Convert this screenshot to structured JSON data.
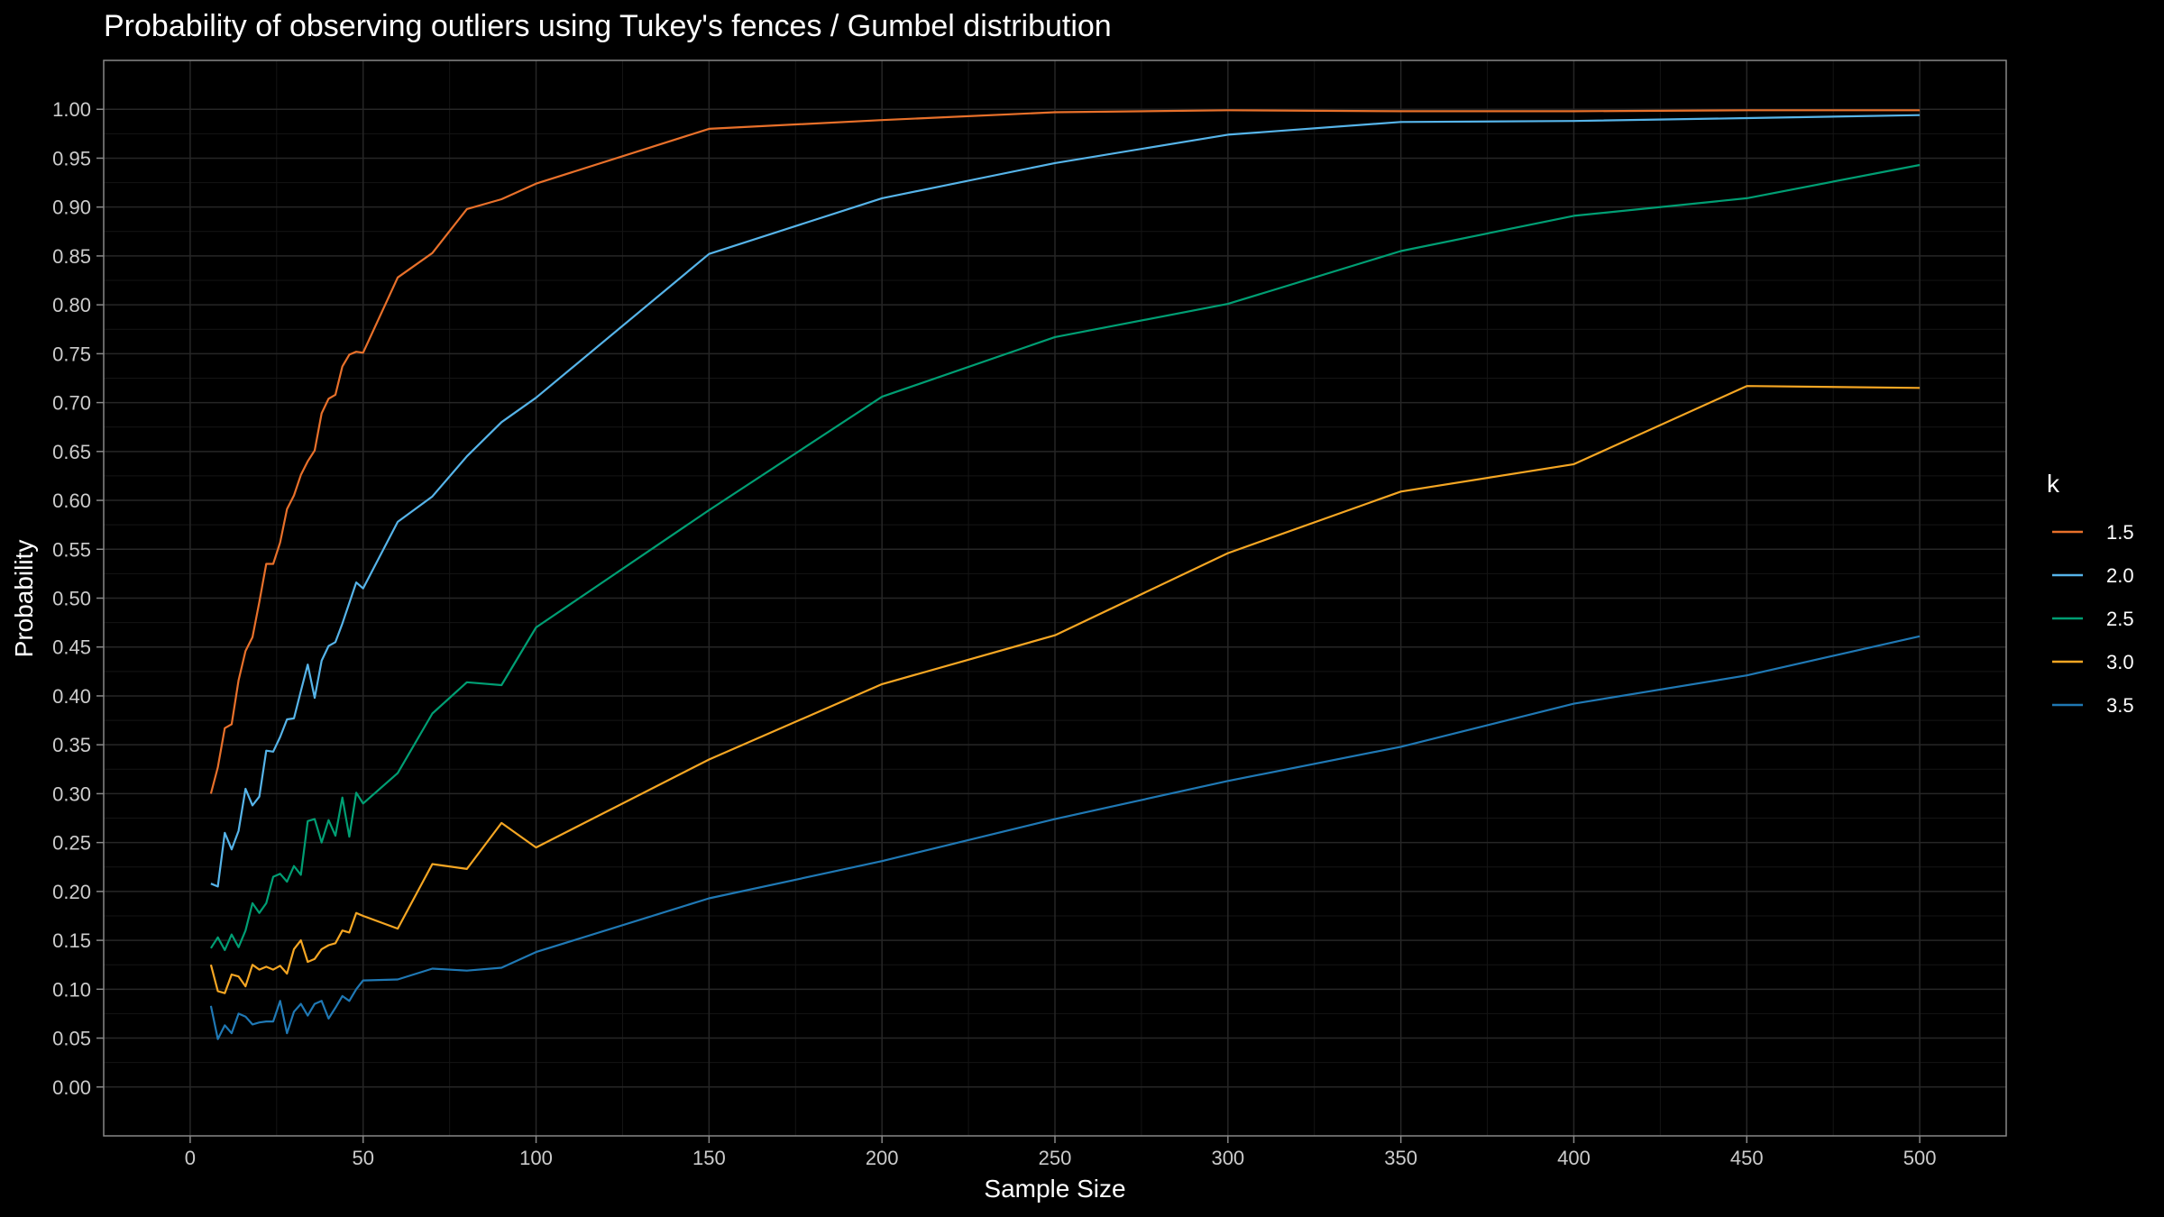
{
  "chart_data": {
    "type": "line",
    "title": "Probability of observing outliers using Tukey's fences / Gumbel distribution",
    "xlabel": "Sample Size",
    "ylabel": "Probability",
    "xlim": [
      -25,
      525
    ],
    "ylim": [
      -0.05,
      1.05
    ],
    "x_ticks": [
      0,
      50,
      100,
      150,
      200,
      250,
      300,
      350,
      400,
      450,
      500
    ],
    "y_ticks": [
      0.0,
      0.05,
      0.1,
      0.15,
      0.2,
      0.25,
      0.3,
      0.35,
      0.4,
      0.45,
      0.5,
      0.55,
      0.6,
      0.65,
      0.7,
      0.75,
      0.8,
      0.85,
      0.9,
      0.95,
      1.0
    ],
    "x_tick_labels": [
      "0",
      "50",
      "100",
      "150",
      "200",
      "250",
      "300",
      "350",
      "400",
      "450",
      "500"
    ],
    "y_tick_labels": [
      "0.00",
      "0.05",
      "0.10",
      "0.15",
      "0.20",
      "0.25",
      "0.30",
      "0.35",
      "0.40",
      "0.45",
      "0.50",
      "0.55",
      "0.60",
      "0.65",
      "0.70",
      "0.75",
      "0.80",
      "0.85",
      "0.90",
      "0.95",
      "1.00"
    ],
    "grid": true,
    "legend": {
      "title": "k",
      "position": "right"
    },
    "x": [
      6,
      8,
      10,
      12,
      14,
      16,
      18,
      20,
      22,
      24,
      26,
      28,
      30,
      32,
      34,
      36,
      38,
      40,
      42,
      44,
      46,
      48,
      50,
      60,
      70,
      80,
      90,
      100,
      150,
      200,
      250,
      300,
      350,
      400,
      450,
      500
    ],
    "series": [
      {
        "name": "1.5",
        "color": "#E8702A",
        "values": [
          0.3,
          0.327,
          0.367,
          0.371,
          0.416,
          0.446,
          0.46,
          0.496,
          0.535,
          0.535,
          0.557,
          0.591,
          0.605,
          0.626,
          0.64,
          0.651,
          0.689,
          0.704,
          0.708,
          0.737,
          0.749,
          0.752,
          0.751,
          0.828,
          0.853,
          0.898,
          0.908,
          0.924,
          0.98,
          0.989,
          0.997,
          0.999,
          0.998,
          0.998,
          0.999,
          0.999
        ]
      },
      {
        "name": "2.0",
        "color": "#56B4E9",
        "values": [
          0.208,
          0.205,
          0.26,
          0.243,
          0.262,
          0.305,
          0.288,
          0.297,
          0.344,
          0.343,
          0.358,
          0.376,
          0.377,
          0.405,
          0.432,
          0.398,
          0.436,
          0.451,
          0.455,
          0.474,
          0.495,
          0.516,
          0.51,
          0.578,
          0.604,
          0.645,
          0.68,
          0.705,
          0.852,
          0.909,
          0.945,
          0.974,
          0.987,
          0.988,
          0.991,
          0.994
        ]
      },
      {
        "name": "2.5",
        "color": "#009E73",
        "values": [
          0.142,
          0.153,
          0.14,
          0.156,
          0.143,
          0.16,
          0.188,
          0.178,
          0.188,
          0.215,
          0.218,
          0.21,
          0.226,
          0.217,
          0.272,
          0.274,
          0.25,
          0.273,
          0.257,
          0.296,
          0.256,
          0.301,
          0.29,
          0.321,
          0.382,
          0.414,
          0.411,
          0.47,
          0.59,
          0.706,
          0.767,
          0.801,
          0.855,
          0.891,
          0.909,
          0.943
        ]
      },
      {
        "name": "3.0",
        "color": "#F5A623",
        "values": [
          0.125,
          0.098,
          0.096,
          0.115,
          0.113,
          0.103,
          0.125,
          0.12,
          0.123,
          0.12,
          0.124,
          0.116,
          0.141,
          0.15,
          0.128,
          0.131,
          0.141,
          0.145,
          0.147,
          0.16,
          0.158,
          0.178,
          0.175,
          0.162,
          0.228,
          0.223,
          0.27,
          0.245,
          0.335,
          0.412,
          0.462,
          0.546,
          0.609,
          0.637,
          0.717,
          0.715
        ]
      },
      {
        "name": "3.5",
        "color": "#1F78B4",
        "values": [
          0.083,
          0.049,
          0.063,
          0.055,
          0.075,
          0.072,
          0.064,
          0.066,
          0.067,
          0.067,
          0.088,
          0.055,
          0.077,
          0.085,
          0.073,
          0.085,
          0.088,
          0.07,
          0.081,
          0.093,
          0.088,
          0.1,
          0.109,
          0.11,
          0.121,
          0.119,
          0.122,
          0.138,
          0.193,
          0.231,
          0.274,
          0.313,
          0.348,
          0.392,
          0.421,
          0.461
        ]
      }
    ]
  }
}
